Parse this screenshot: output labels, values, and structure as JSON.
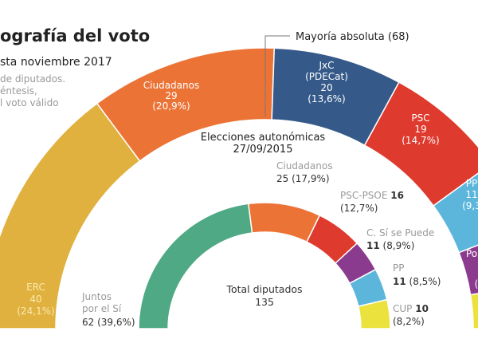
{
  "header": {
    "title": "ografía del voto",
    "subtitle": "sta noviembre 2017",
    "notes": [
      "de diputados.",
      "éntesis,",
      "l voto válido"
    ]
  },
  "majority_label": "Mayoría absoluta (68)",
  "inner_heading": [
    "Elecciones autonómicas",
    "27/09/2015"
  ],
  "total": {
    "label": "Total diputados",
    "value": "135"
  },
  "chart_data": [
    {
      "type": "pie",
      "subtitle": "sta noviembre 2017",
      "total_seats": 135,
      "majority": 68,
      "series": [
        {
          "name": "ERC",
          "seats": 40,
          "pct": "24,1%",
          "color": "#e0b13e",
          "lines": [
            "ERC",
            "40",
            "(24,1%)"
          ]
        },
        {
          "name": "Ciudadanos",
          "seats": 29,
          "pct": "20,9%",
          "color": "#ec7336",
          "lines": [
            "Ciudadanos",
            "29",
            "(20,9%)"
          ]
        },
        {
          "name": "JxC (PDECat)",
          "seats": 20,
          "pct": "13,6%",
          "color": "#355a89",
          "lines": [
            "JxC",
            "(PDECat)",
            "20",
            "(13,6%)"
          ]
        },
        {
          "name": "PSC",
          "seats": 19,
          "pct": "14,7%",
          "color": "#de3a2e",
          "lines": [
            "PSC",
            "19",
            "(14,7%)"
          ]
        },
        {
          "name": "PP",
          "seats": 11,
          "pct": "9,3",
          "color": "#5cb6dc",
          "lines": [
            "PP",
            "11",
            "(9,3"
          ]
        },
        {
          "name": "Po",
          "seats": 9,
          "color": "#8b3b8e",
          "lines": [
            "Po",
            "("
          ]
        },
        {
          "name": "",
          "seats": 7,
          "color": "#ece23e",
          "lines": []
        }
      ]
    },
    {
      "type": "pie",
      "title": "Elecciones autonómicas 27/09/2015",
      "total_seats": 135,
      "series": [
        {
          "name": "Juntos por el Sí",
          "seats": 62,
          "pct": "39,6%",
          "color": "#4fa985"
        },
        {
          "name": "Ciudadanos",
          "seats": 25,
          "pct": "17,9%",
          "color": "#ec7336"
        },
        {
          "name": "PSC-PSOE",
          "seats": 16,
          "pct": "12,7%",
          "color": "#de3a2e"
        },
        {
          "name": "C. Sí se Puede",
          "seats": 11,
          "pct": "8,9%",
          "color": "#8b3b8e"
        },
        {
          "name": "PP",
          "seats": 11,
          "pct": "8,5%",
          "color": "#5cb6dc"
        },
        {
          "name": "CUP",
          "seats": 10,
          "pct": "8,2%",
          "color": "#ece23e"
        }
      ]
    }
  ],
  "inner_labels": {
    "jxsi": [
      "Juntos",
      "por el Sí",
      "62 (39,6%)"
    ],
    "cs": [
      "Ciudadanos",
      "25 (17,9%)"
    ],
    "psc": [
      "PSC-PSOE",
      "16",
      "(12,7%)"
    ],
    "csqp": [
      "C. Sí se Puede",
      "11",
      "(8,9%)"
    ],
    "pp": [
      "PP",
      "11",
      "(8,5%)"
    ],
    "cup": [
      "CUP",
      "10",
      "(8,2%)"
    ]
  }
}
